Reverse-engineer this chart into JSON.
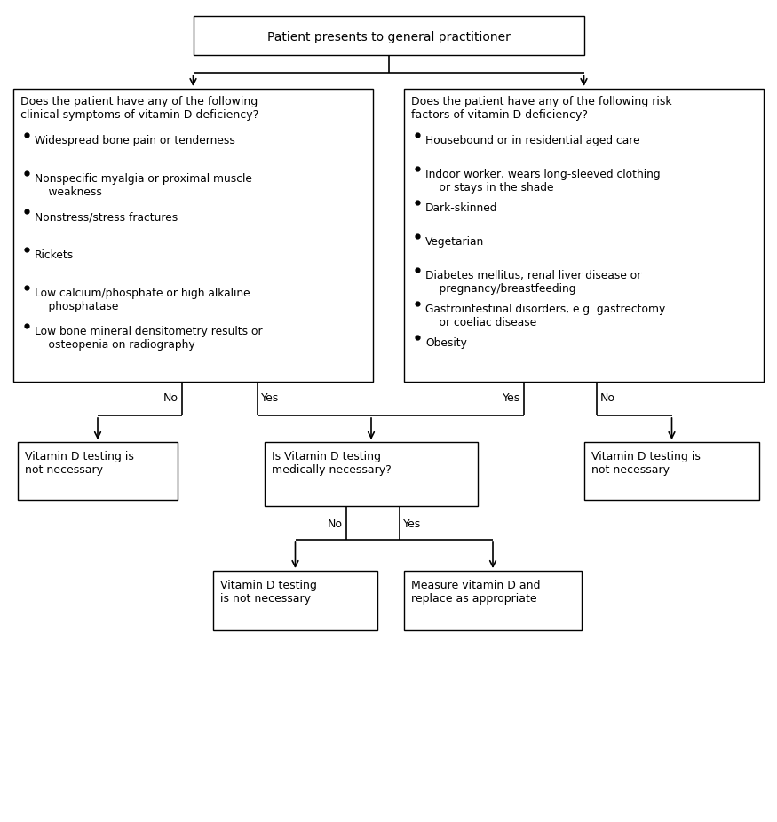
{
  "title": "Patient presents to general practitioner",
  "left_box_title": "Does the patient have any of the following\nclinical symptoms of vitamin D deficiency?",
  "left_bullets": [
    "Widespread bone pain or tenderness",
    "Nonspecific myalgia or proximal muscle\n    weakness",
    "Nonstress/stress fractures",
    "Rickets",
    "Low calcium/phosphate or high alkaline\n    phosphatase",
    "Low bone mineral densitometry results or\n    osteopenia on radiography"
  ],
  "right_box_title": "Does the patient have any of the following risk\nfactors of vitamin D deficiency?",
  "right_bullets": [
    "Housebound or in residential aged care",
    "Indoor worker, wears long-sleeved clothing\n    or stays in the shade",
    "Dark-skinned",
    "Vegetarian",
    "Diabetes mellitus, renal liver disease or\n    pregnancy/breastfeeding",
    "Gastrointestinal disorders, e.g. gastrectomy\n    or coeliac disease",
    "Obesity"
  ],
  "no_left": "No",
  "yes_left": "Yes",
  "yes_right": "Yes",
  "no_right": "No",
  "bottom_left_box": "Vitamin D testing is\nnot necessary",
  "bottom_mid_box": "Is Vitamin D testing\nmedically necessary?",
  "bottom_right_box": "Vitamin D testing is\nnot necessary",
  "no_mid": "No",
  "yes_mid": "Yes",
  "final_left_box": "Vitamin D testing\nis not necessary",
  "final_right_box": "Measure vitamin D and\nreplace as appropriate",
  "bg_color": "#ffffff",
  "text_color": "#000000"
}
